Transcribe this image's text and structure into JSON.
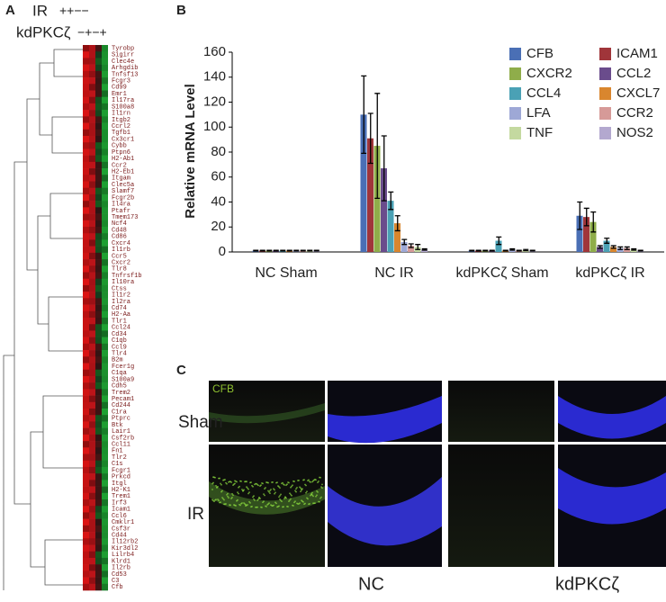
{
  "panels": {
    "a": "A",
    "b": "B",
    "c": "C"
  },
  "heatmap": {
    "conditions": [
      {
        "name": "IR",
        "signs": "++−−"
      },
      {
        "name": "kdPKCζ",
        "signs": "−+−+"
      }
    ],
    "genes": [
      "Tyrobp",
      "Sigirr",
      "Clec4e",
      "Arhgdib",
      "Tnfsf13",
      "Fcgr3",
      "Cd99",
      "Emr1",
      "Il17ra",
      "S100a8",
      "Il1rn",
      "Itgb2",
      "Ccrl2",
      "Tgfb1",
      "Cx3cr1",
      "Cybb",
      "Ptpn6",
      "H2-Ab1",
      "Ccr2",
      "H2-Eb1",
      "Itgam",
      "Clec5a",
      "Slamf7",
      "Fcgr2b",
      "Il4ra",
      "Ptafr",
      "Tmem173",
      "Ncf4",
      "Cd48",
      "Cd86",
      "Cxcr4",
      "Il1rb",
      "Ccr5",
      "Cxcr2",
      "Tlr8",
      "Tnfrsf1b",
      "Il10ra",
      "Ctss",
      "Il1r2",
      "Il2ra",
      "Cd74",
      "H2-Aa",
      "Tlr1",
      "Ccl24",
      "Cd34",
      "C1qb",
      "Ccl9",
      "Tlr4",
      "B2m",
      "Fcer1g",
      "C1qa",
      "S100a9",
      "Cdh5",
      "Trem2",
      "Pecam1",
      "Cd244",
      "C1ra",
      "Ptprc",
      "Btk",
      "Lair1",
      "Csf2rb",
      "Ccl11",
      "Fn1",
      "Tlr2",
      "C1s",
      "Fcgr1",
      "Prkcd",
      "Itgl",
      "H2-K1",
      "Trem1",
      "Irf3",
      "Icam1",
      "Ccl6",
      "Cmklr1",
      "Csf3r",
      "Cd44",
      "Il12rb2",
      "Kir3dl2",
      "Lilrb4",
      "Klrd1",
      "Il2rb",
      "Cd53",
      "C3",
      "Cfb"
    ]
  },
  "chart_data": {
    "type": "bar",
    "y_label": "Relative mRNA Level",
    "categories": [
      "NC Sham",
      "NC IR",
      "kdPKCζ Sham",
      "kdPKCζ IR"
    ],
    "ylim": [
      0,
      160
    ],
    "yticks": [
      0,
      20,
      40,
      60,
      80,
      100,
      120,
      140,
      160
    ],
    "grid": false,
    "legend": "top-right",
    "series": [
      {
        "name": "CFB",
        "color": "#4a6fb5",
        "values": [
          1,
          110,
          1,
          29
        ],
        "errors": [
          0.3,
          31,
          0.3,
          11
        ]
      },
      {
        "name": "ICAM1",
        "color": "#a0353a",
        "values": [
          1,
          91,
          1,
          28
        ],
        "errors": [
          0.3,
          20,
          0.3,
          7
        ]
      },
      {
        "name": "CXCR2",
        "color": "#8fad4a",
        "values": [
          1,
          85,
          1,
          24
        ],
        "errors": [
          0.3,
          42,
          0.3,
          8
        ]
      },
      {
        "name": "CCL2",
        "color": "#6a4c8c",
        "values": [
          1,
          67,
          1,
          4
        ],
        "errors": [
          0.3,
          26,
          0.3,
          1
        ]
      },
      {
        "name": "CCL4",
        "color": "#4aa1b5",
        "values": [
          1,
          41,
          9,
          9
        ],
        "errors": [
          0.3,
          7,
          3,
          2
        ]
      },
      {
        "name": "CXCL7",
        "color": "#d9862e",
        "values": [
          1,
          23,
          1,
          4
        ],
        "errors": [
          0.3,
          6,
          0.3,
          1
        ]
      },
      {
        "name": "LFA",
        "color": "#9ea8d6",
        "values": [
          1,
          8,
          2,
          3
        ],
        "errors": [
          0.3,
          2,
          0.5,
          1
        ]
      },
      {
        "name": "CCR2",
        "color": "#d69a98",
        "values": [
          1,
          5,
          1,
          3
        ],
        "errors": [
          0.3,
          1.5,
          0.3,
          1
        ]
      },
      {
        "name": "TNF",
        "color": "#c4d9a0",
        "values": [
          1,
          4,
          1.5,
          2
        ],
        "errors": [
          0.3,
          2,
          0.5,
          0.5
        ]
      },
      {
        "name": "NOS2",
        "color": "#b3a8cf",
        "values": [
          1,
          2,
          1,
          1
        ],
        "errors": [
          0.3,
          0.5,
          0.3,
          0.3
        ]
      }
    ]
  },
  "micrographs": {
    "stain": "CFB",
    "rows": [
      "Sham",
      "IR"
    ],
    "groups": [
      "NC",
      "kdPKCζ"
    ]
  }
}
